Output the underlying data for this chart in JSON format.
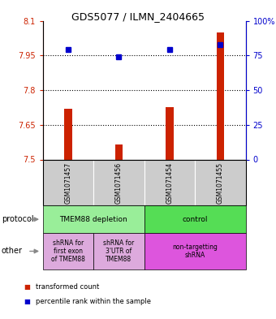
{
  "title": "GDS5077 / ILMN_2404665",
  "samples": [
    "GSM1071457",
    "GSM1071456",
    "GSM1071454",
    "GSM1071455"
  ],
  "red_values": [
    7.72,
    7.565,
    7.725,
    8.05
  ],
  "blue_values": [
    79,
    74,
    79,
    83
  ],
  "ylim_left": [
    7.5,
    8.1
  ],
  "ylim_right": [
    0,
    100
  ],
  "yticks_left": [
    7.5,
    7.65,
    7.8,
    7.95,
    8.1
  ],
  "yticks_right": [
    0,
    25,
    50,
    75,
    100
  ],
  "ytick_labels_left": [
    "7.5",
    "7.65",
    "7.8",
    "7.95",
    "8.1"
  ],
  "ytick_labels_right": [
    "0",
    "25",
    "50",
    "75",
    "100%"
  ],
  "hlines": [
    7.65,
    7.8,
    7.95
  ],
  "protocol_labels": [
    "TMEM88 depletion",
    "control"
  ],
  "protocol_colors": [
    "#99ee99",
    "#55dd55"
  ],
  "other_labels": [
    "shRNA for\nfirst exon\nof TMEM88",
    "shRNA for\n3'UTR of\nTMEM88",
    "non-targetting\nshRNA"
  ],
  "other_colors": [
    "#ddaadd",
    "#ddaadd",
    "#dd55dd"
  ],
  "bar_color": "#cc2200",
  "dot_color": "#0000cc",
  "bg_color": "#cccccc",
  "legend_red": "transformed count",
  "legend_blue": "percentile rank within the sample",
  "protocol_row_label": "protocol",
  "other_row_label": "other"
}
